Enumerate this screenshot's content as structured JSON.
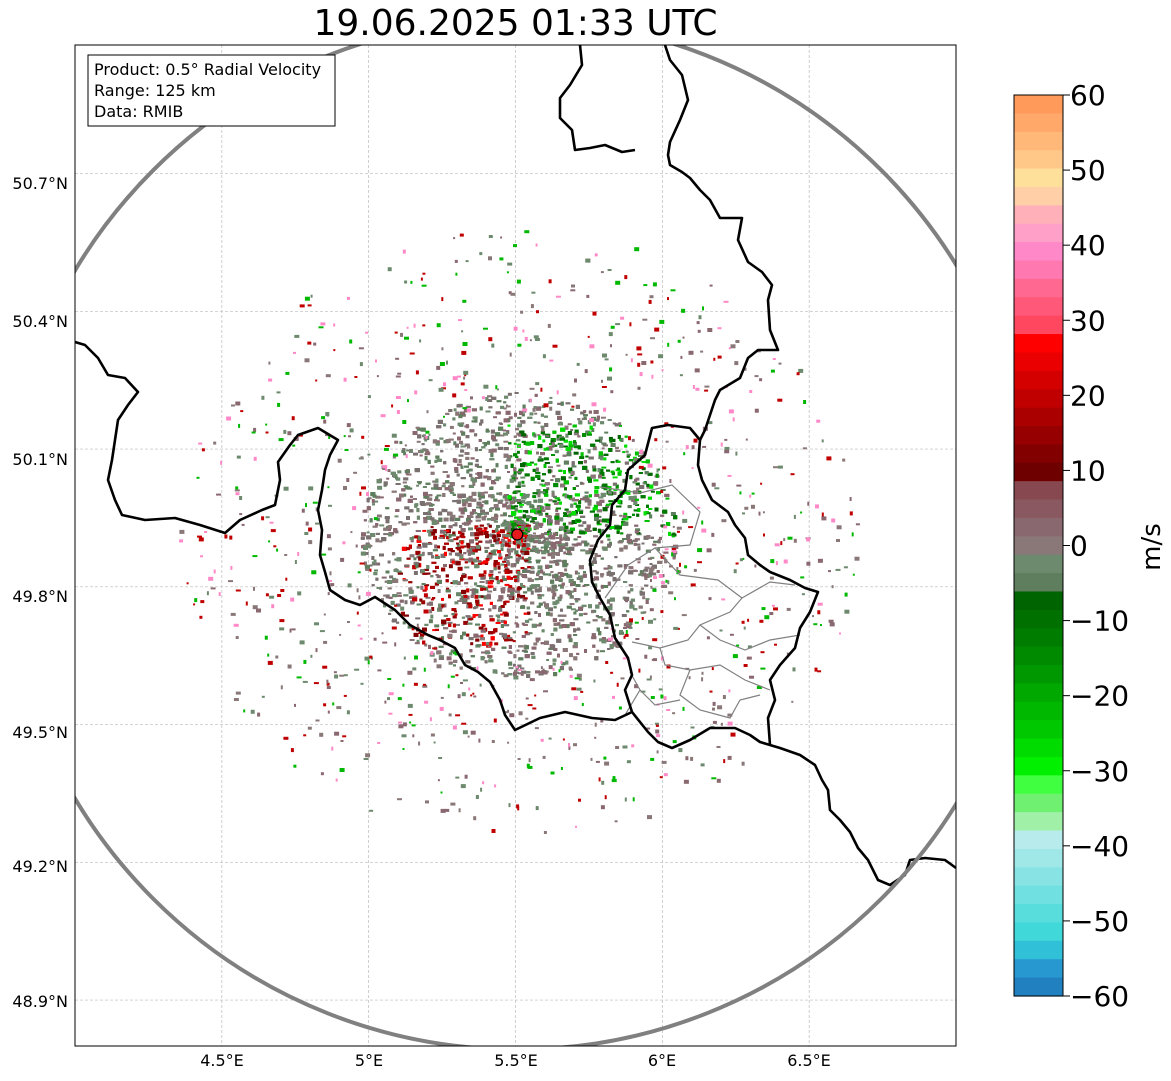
{
  "title": "19.06.2025 01:33 UTC",
  "info_box": {
    "product": "Product: 0.5° Radial Velocity",
    "range": "Range: 125 km",
    "data": "Data: RMIB"
  },
  "lat_ticks": [
    "50.7°N",
    "50.4°N",
    "50.1°N",
    "49.8°N",
    "49.5°N",
    "49.2°N",
    "48.9°N"
  ],
  "lon_ticks": [
    "4.5°E",
    "5°E",
    "5.5°E",
    "6°E",
    "6.5°E"
  ],
  "colorbar": {
    "label": "m/s",
    "ticks": [
      "60",
      "50",
      "40",
      "30",
      "20",
      "10",
      "0",
      "−10",
      "−20",
      "−30",
      "−40",
      "−50",
      "−60"
    ],
    "colors_top_to_bottom": [
      "#ff9a5a",
      "#ffa86a",
      "#ffb878",
      "#ffc888",
      "#ffe09a",
      "#ffd0a8",
      "#ffb0b8",
      "#ffa0c8",
      "#ff88c8",
      "#ff78b0",
      "#ff6890",
      "#ff5878",
      "#ff4860",
      "#ff0000",
      "#ea0000",
      "#d40000",
      "#c00000",
      "#aa0000",
      "#960000",
      "#820000",
      "#6e0000",
      "#884850",
      "#8a5860",
      "#8a6870",
      "#8a7878",
      "#6e8a6e",
      "#5e7e5e",
      "#006400",
      "#007000",
      "#007c00",
      "#008a00",
      "#009800",
      "#00a800",
      "#00b800",
      "#00c800",
      "#00dc00",
      "#00f000",
      "#40ff40",
      "#70f070",
      "#a0f0a8",
      "#b8ecec",
      "#a0e8e8",
      "#88e4e4",
      "#70e0e0",
      "#58dcdc",
      "#40d8d8",
      "#30c0d8",
      "#2898d0",
      "#2080c0"
    ]
  },
  "radar": {
    "site_lat": 49.914,
    "site_lon": 5.506,
    "lon_range": [
      4.0,
      7.0
    ],
    "lat_range": [
      48.8,
      50.98
    ],
    "circle_color": "#808080",
    "site_marker_color": "#e41a1c"
  },
  "map_colors": {
    "border": "#000000",
    "region": "#808080",
    "grid": "#bbbbbb"
  },
  "velocity_colors": {
    "inbound": [
      "#006400",
      "#007800",
      "#008c00",
      "#00c000",
      "#00e000"
    ],
    "neutral": [
      "#8a6870",
      "#8a7878",
      "#6e8a6e",
      "#7a7070",
      "#5e7e5e"
    ],
    "outbound": [
      "#820000",
      "#960000",
      "#aa0000",
      "#c00000",
      "#ff0000"
    ],
    "sparse": [
      "#8a6870",
      "#8a7878",
      "#6e8a6e",
      "#00b800",
      "#ff88c8",
      "#c00000"
    ]
  }
}
